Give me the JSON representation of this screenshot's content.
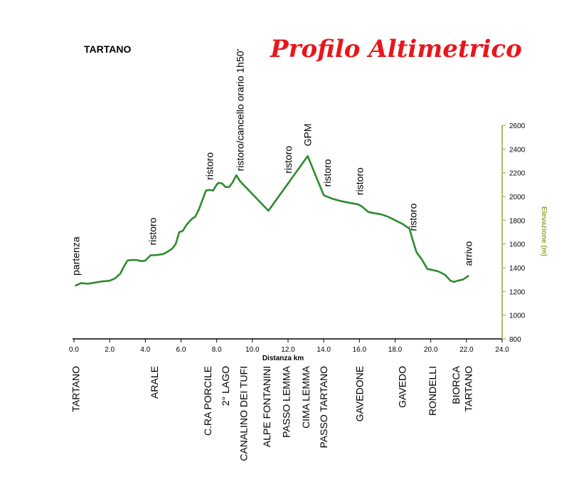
{
  "header": {
    "race_name": "TARTANO",
    "title": "Profilo Altimetrico"
  },
  "colors": {
    "line": "#2e8b2e",
    "title": "#e8161b",
    "y_axis": "#9aa33a",
    "x_axis": "#000000"
  },
  "chart_data": {
    "type": "line",
    "title": "Profilo Altimetrico",
    "xlabel": "Distanza km",
    "ylabel": "Elevazione (m)",
    "xlim": [
      0,
      24
    ],
    "ylim": [
      800,
      2600
    ],
    "x_ticks": [
      "0.0",
      "2.0",
      "4.0",
      "6.0",
      "8.0",
      "10.0",
      "12.0",
      "14.0",
      "16.0",
      "18.0",
      "20.0",
      "22.0",
      "24.0"
    ],
    "y_ticks": [
      "800",
      "1000",
      "1200",
      "1400",
      "1600",
      "1800",
      "2000",
      "2200",
      "2400",
      "2600"
    ],
    "y_axis_position": "right",
    "grid": false,
    "series": [
      {
        "x": [
          0.1,
          0.4,
          0.8,
          1.2,
          1.6,
          2.0,
          2.3,
          2.6,
          2.8,
          3.0,
          3.2,
          3.5,
          3.8,
          4.0,
          4.3,
          4.5,
          4.8,
          5.0,
          5.2,
          5.5,
          5.7,
          5.9,
          6.1,
          6.3,
          6.6,
          6.8,
          7.0,
          7.4,
          7.6,
          7.8,
          8.0,
          8.1,
          8.3,
          8.5,
          8.7,
          8.9,
          9.1,
          9.3,
          10.9,
          13.1,
          14.0,
          14.5,
          15.0,
          15.5,
          15.9,
          16.1,
          16.5,
          16.8,
          17.2,
          17.6,
          18.0,
          18.4,
          18.8,
          19.0,
          19.2,
          19.5,
          19.8,
          20.1,
          20.4,
          20.8,
          21.1,
          21.3,
          21.5,
          21.8,
          22.1
        ],
        "y": [
          1250,
          1270,
          1265,
          1275,
          1285,
          1290,
          1310,
          1350,
          1410,
          1460,
          1465,
          1465,
          1455,
          1460,
          1505,
          1505,
          1510,
          1515,
          1530,
          1560,
          1600,
          1700,
          1710,
          1760,
          1810,
          1830,
          1890,
          2050,
          2055,
          2050,
          2100,
          2115,
          2110,
          2080,
          2080,
          2120,
          2180,
          2130,
          1880,
          2340,
          2010,
          1980,
          1960,
          1945,
          1935,
          1920,
          1870,
          1860,
          1850,
          1830,
          1800,
          1770,
          1730,
          1625,
          1530,
          1470,
          1390,
          1380,
          1370,
          1340,
          1290,
          1280,
          1290,
          1300,
          1330
        ]
      }
    ],
    "annotations": [
      {
        "text": "partenza",
        "x": 0.1
      },
      {
        "text": "ristoro",
        "x": 4.4
      },
      {
        "text": "ristoro",
        "x": 7.6
      },
      {
        "text": "ristoro/cancello orario 1h50'",
        "x": 9.3
      },
      {
        "text": "ristoro",
        "x": 12.0
      },
      {
        "text": "GPM",
        "x": 13.1
      },
      {
        "text": "ristoro",
        "x": 14.2
      },
      {
        "text": "ristoro",
        "x": 16.0
      },
      {
        "text": "ristoro",
        "x": 19.0
      },
      {
        "text": "arrivo",
        "x": 22.1
      }
    ],
    "places": [
      {
        "label": "TARTANO",
        "x": 0.1
      },
      {
        "label": "ARALE",
        "x": 4.5
      },
      {
        "label": "C.RA PORCILE",
        "x": 7.5
      },
      {
        "label": "2° LAGO",
        "x": 8.5
      },
      {
        "label": "CANALINO DEI TUFI",
        "x": 9.5
      },
      {
        "label": "ALPE FONTANINI",
        "x": 10.8
      },
      {
        "label": "PASSO LEMMA",
        "x": 11.9
      },
      {
        "label": "CIMA LEMMA",
        "x": 13.0
      },
      {
        "label": "PASSO TARTANO",
        "x": 14.0
      },
      {
        "label": "GAVEDONE",
        "x": 16.0
      },
      {
        "label": "GAVEDO",
        "x": 18.4
      },
      {
        "label": "RONDELLI",
        "x": 20.1
      },
      {
        "label": "BIORCA",
        "x": 21.4
      },
      {
        "label": "TARTANO",
        "x": 22.1
      }
    ]
  }
}
